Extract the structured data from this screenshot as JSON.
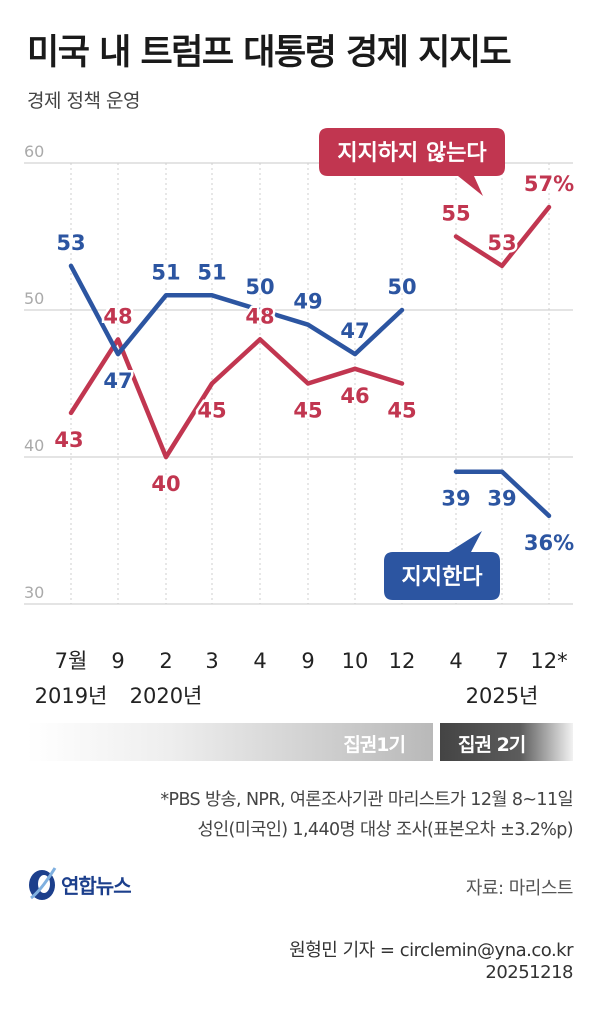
{
  "title": "미국 내 트럼프 대통령 경제 지지도",
  "subtitle": "경제 정책 운영",
  "chart_data": {
    "type": "line",
    "y_ticks": [
      "60",
      "50",
      "40",
      "30"
    ],
    "ylim": [
      30,
      60
    ],
    "grid": true,
    "categories": [
      "7월",
      "9",
      "2",
      "3",
      "4",
      "9",
      "10",
      "12",
      "4",
      "7",
      "12*"
    ],
    "year_labels": [
      {
        "label": "2019년",
        "category_index": 0
      },
      {
        "label": "2020년",
        "category_index": 2
      },
      {
        "label": "2025년",
        "category_index": 9
      }
    ],
    "series": [
      {
        "name": "지지하지 않는다",
        "color": "#c13650",
        "segments": [
          {
            "indices": [
              0,
              1,
              2,
              3,
              4,
              5,
              6,
              7
            ],
            "values": [
              43,
              48,
              40,
              45,
              48,
              45,
              46,
              45
            ],
            "labels": [
              "43",
              "48",
              "40",
              "45",
              "48",
              "45",
              "46",
              "45"
            ]
          },
          {
            "indices": [
              8,
              9,
              10
            ],
            "values": [
              55,
              53,
              57
            ],
            "labels": [
              "55",
              "53",
              "57%"
            ]
          }
        ]
      },
      {
        "name": "지지한다",
        "color": "#2c55a1",
        "segments": [
          {
            "indices": [
              0,
              1,
              2,
              3,
              4,
              5,
              6,
              7
            ],
            "values": [
              53,
              47,
              51,
              51,
              50,
              49,
              47,
              50
            ],
            "labels": [
              "53",
              "47",
              "51",
              "51",
              "50",
              "49",
              "47",
              "50"
            ]
          },
          {
            "indices": [
              8,
              9,
              10
            ],
            "values": [
              39,
              39,
              36
            ],
            "labels": [
              "39",
              "39",
              "36%"
            ]
          }
        ]
      }
    ]
  },
  "periods": {
    "first": "집권1기",
    "second": "집권 2기"
  },
  "footnote": {
    "line1": "*PBS 방송, NPR, 여론조사기관 마리스트가 12월 8~11일",
    "line2": "성인(미국인) 1,440명 대상 조사(표본오차 ±3.2%p)"
  },
  "logo_text": "연합뉴스",
  "source": "자료: 마리스트",
  "credit": {
    "reporter": "원형민 기자 = circlemin@yna.co.kr",
    "date": "20251218"
  }
}
